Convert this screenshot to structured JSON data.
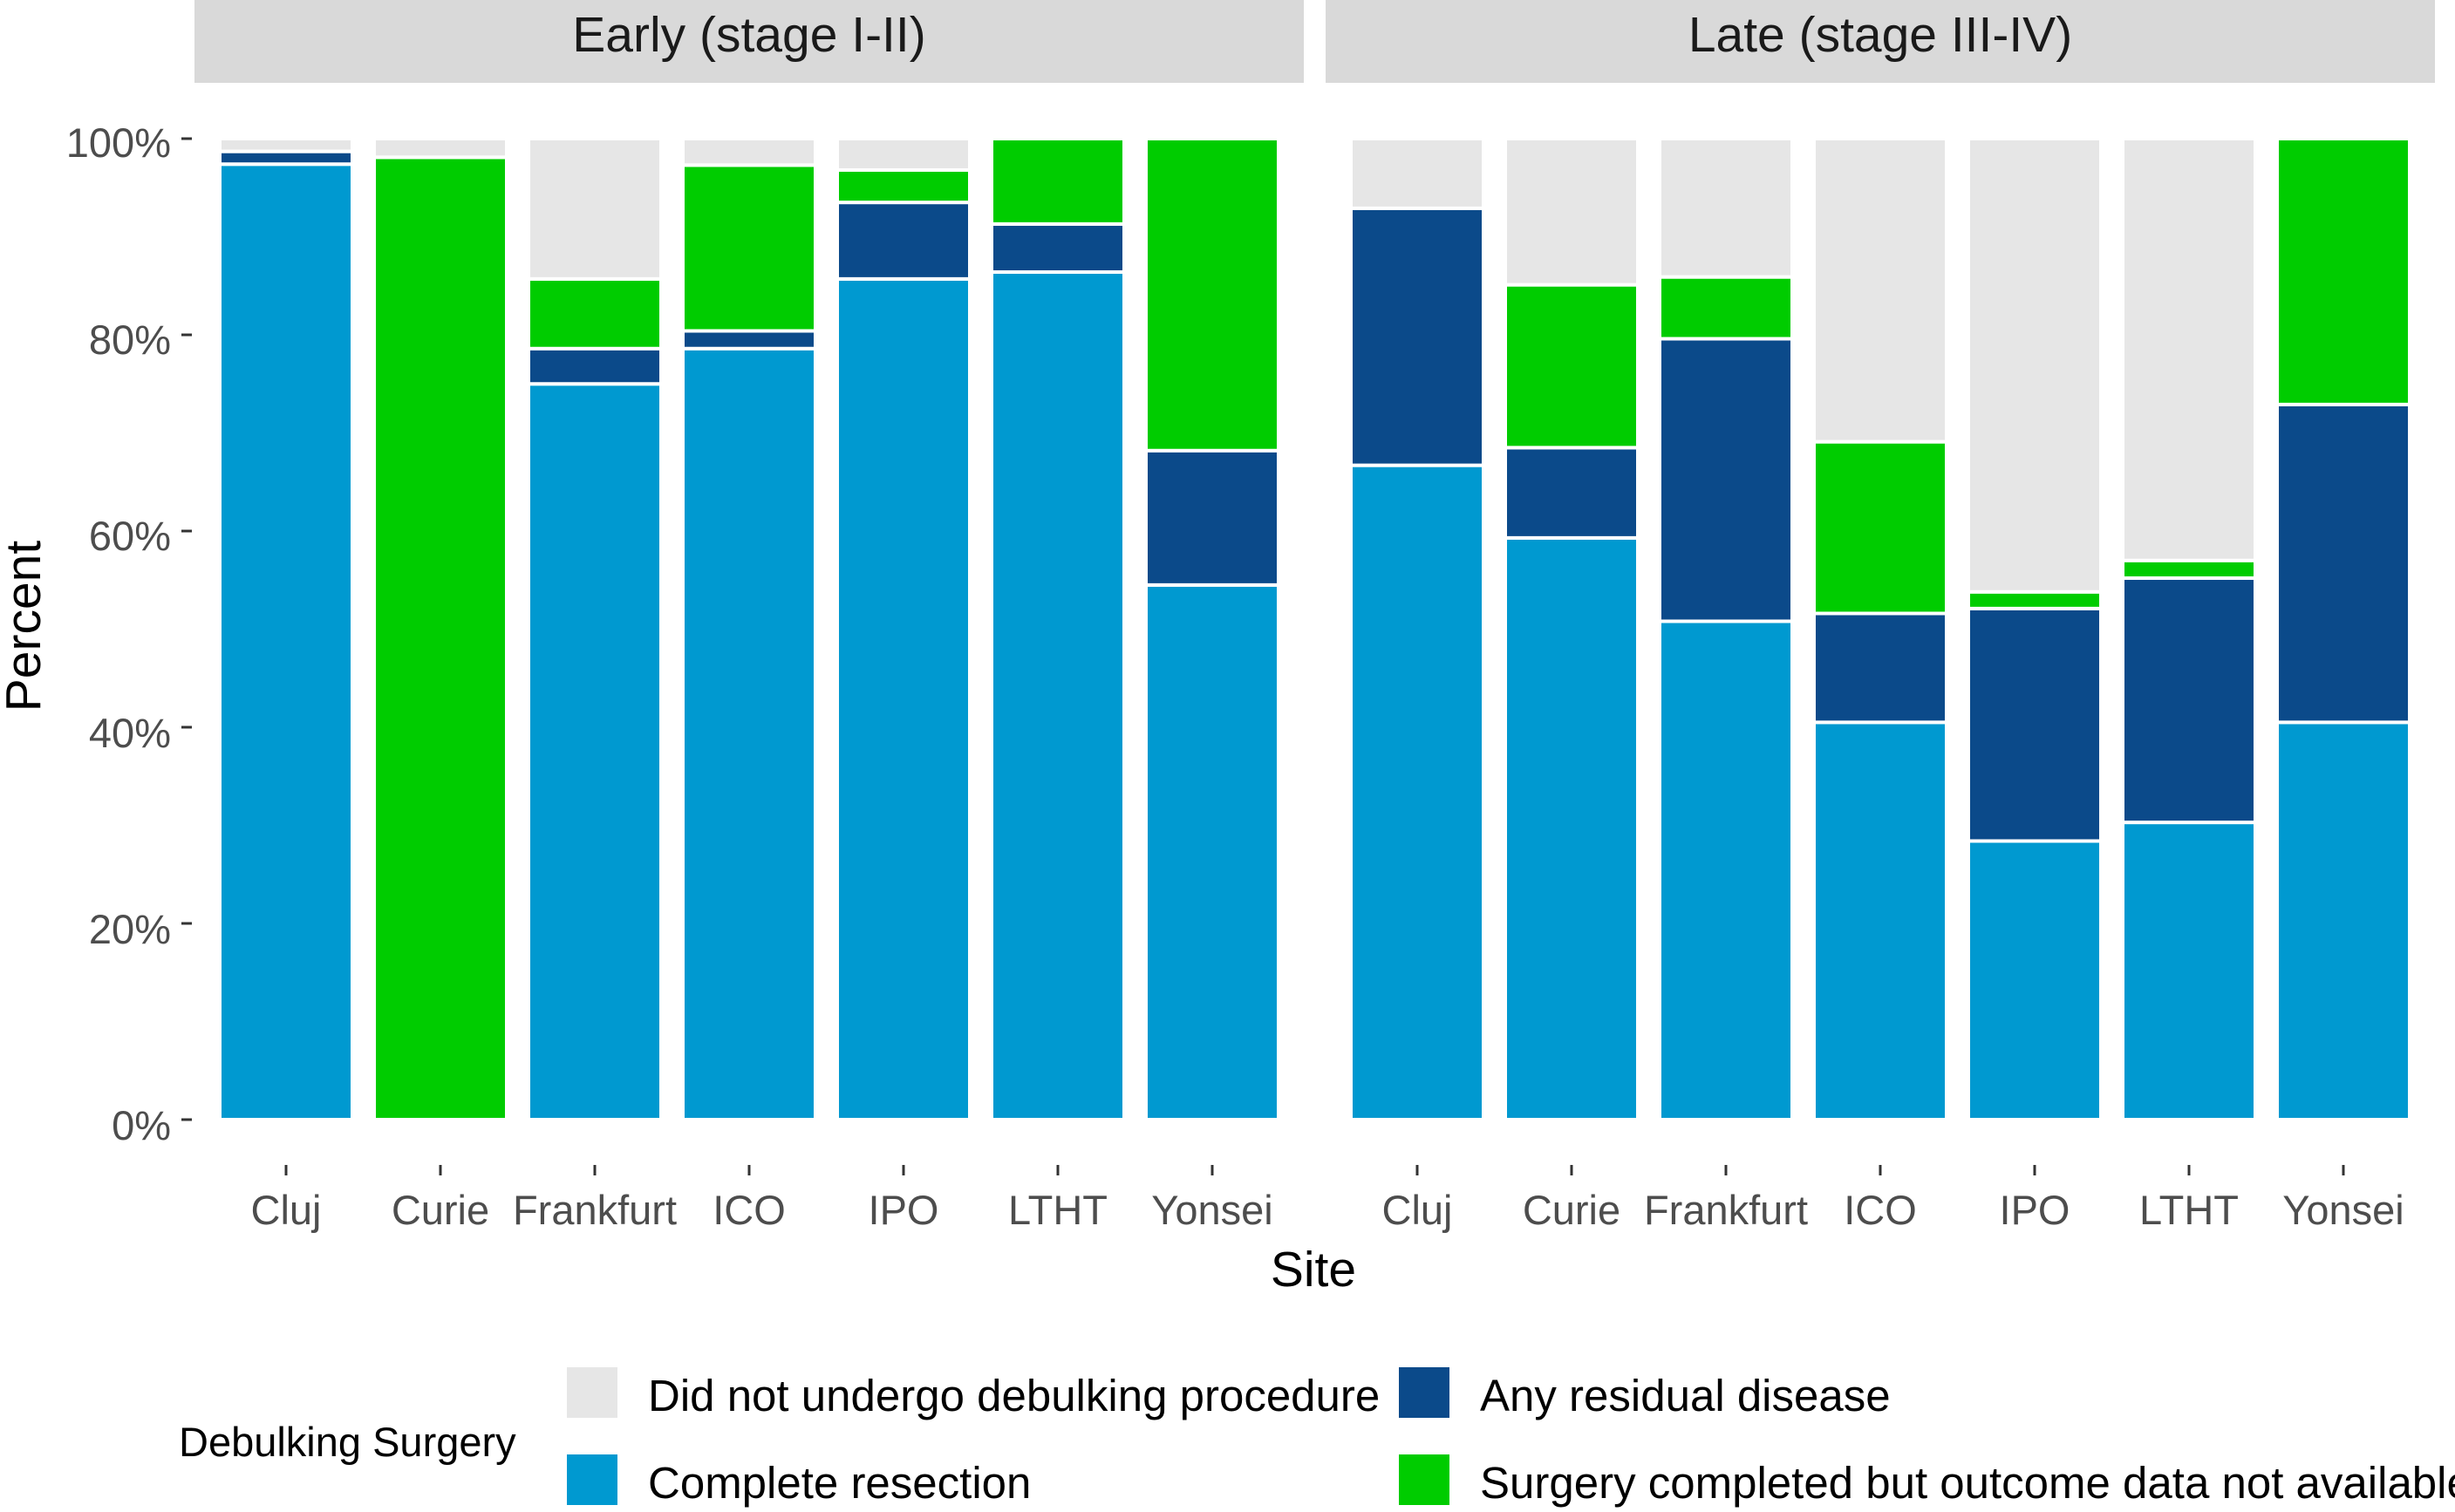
{
  "chart_data": {
    "type": "bar",
    "stacked": true,
    "percent_scale": true,
    "xlabel": "Site",
    "ylabel": "Percent",
    "ylim": [
      0,
      100
    ],
    "y_ticks": [
      "0%",
      "20%",
      "40%",
      "60%",
      "80%",
      "100%"
    ],
    "y_tick_values": [
      0,
      20,
      40,
      60,
      80,
      100
    ],
    "legend": {
      "title": "Debulking Surgery",
      "position": "bottom",
      "items": [
        {
          "name": "Did not undergo debulking procedure",
          "color": "#e6e6e6"
        },
        {
          "name": "Any residual disease",
          "color": "#0b4a8a"
        },
        {
          "name": "Complete resection",
          "color": "#0099d0"
        },
        {
          "name": "Surgery completed but outcome data not available",
          "color": "#00cc00"
        }
      ]
    },
    "stack_order_bottom_to_top": [
      "Complete resection",
      "Any residual disease",
      "Surgery completed but outcome data not available",
      "Did not undergo debulking procedure"
    ],
    "facets": [
      {
        "title": "Early (stage I-II)",
        "categories": [
          "Cluj",
          "Curie",
          "Frankfurt",
          "ICO",
          "IPO",
          "LTHT",
          "Yonsei"
        ],
        "series": [
          {
            "name": "Complete resection",
            "values": [
              97.4,
              0,
              75,
              78.6,
              85.7,
              86.4,
              54.5
            ]
          },
          {
            "name": "Any residual disease",
            "values": [
              1.3,
              0,
              3.6,
              1.8,
              7.8,
              4.9,
              13.7
            ]
          },
          {
            "name": "Surgery completed but outcome data not available",
            "values": [
              0,
              98.1,
              7.1,
              16.9,
              3.3,
              8.7,
              31.8
            ]
          },
          {
            "name": "Did not undergo debulking procedure",
            "values": [
              1.3,
              1.9,
              14.3,
              2.7,
              3.2,
              0,
              0
            ]
          }
        ]
      },
      {
        "title": "Late (stage III-IV)",
        "categories": [
          "Cluj",
          "Curie",
          "Frankfurt",
          "ICO",
          "IPO",
          "LTHT",
          "Yonsei"
        ],
        "series": [
          {
            "name": "Complete resection",
            "values": [
              66.7,
              59.3,
              50.8,
              40.5,
              28.4,
              30.3,
              40.5
            ]
          },
          {
            "name": "Any residual disease",
            "values": [
              26.2,
              9.2,
              28.8,
              11.1,
              23.7,
              24.9,
              32.4
            ]
          },
          {
            "name": "Surgery completed but outcome data not available",
            "values": [
              0,
              16.6,
              6.3,
              17.5,
              1.7,
              1.8,
              27.1
            ]
          },
          {
            "name": "Did not undergo debulking procedure",
            "values": [
              7.1,
              14.9,
              14.1,
              30.9,
              46.2,
              43,
              0
            ]
          }
        ]
      }
    ]
  }
}
